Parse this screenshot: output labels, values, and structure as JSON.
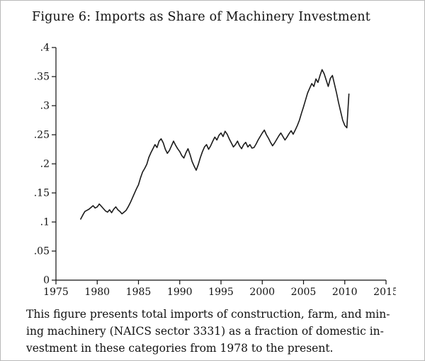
{
  "figure": {
    "title": "Figure 6: Imports as Share of Machinery Investment",
    "caption_lines": [
      "This figure presents total imports of construction, farm, and min-",
      "ing machinery (NAICS sector 3331) as a fraction of domestic in-",
      "vestment in these categories from 1978 to the present."
    ]
  },
  "chart_data": {
    "type": "line",
    "title": "Imports as Share of Machinery Investment",
    "xlabel": "",
    "ylabel": "",
    "xlim": [
      1975,
      2015
    ],
    "ylim": [
      0,
      0.4
    ],
    "x_ticks": [
      1975,
      1980,
      1985,
      1990,
      1995,
      2000,
      2005,
      2010,
      2015
    ],
    "y_ticks": [
      0,
      0.05,
      0.1,
      0.15,
      0.2,
      0.25,
      0.3,
      0.35,
      0.4
    ],
    "y_tick_labels": [
      "0",
      ".05",
      ".1",
      ".15",
      ".2",
      ".25",
      ".3",
      ".35",
      ".4"
    ],
    "grid": false,
    "legend": "none",
    "axis_color": "#111111",
    "line_color": "#1b1b1b",
    "x_start": 1978.0,
    "x_step": 0.25,
    "x_end": 2010.5,
    "frequency": "quarterly",
    "series": [
      {
        "name": "imports-share-of-machinery-investment",
        "values": [
          0.105,
          0.112,
          0.118,
          0.12,
          0.122,
          0.125,
          0.128,
          0.124,
          0.126,
          0.131,
          0.127,
          0.123,
          0.119,
          0.117,
          0.121,
          0.116,
          0.122,
          0.126,
          0.121,
          0.118,
          0.114,
          0.117,
          0.12,
          0.126,
          0.133,
          0.141,
          0.149,
          0.157,
          0.164,
          0.176,
          0.186,
          0.192,
          0.199,
          0.211,
          0.219,
          0.226,
          0.233,
          0.228,
          0.239,
          0.243,
          0.236,
          0.225,
          0.218,
          0.223,
          0.231,
          0.239,
          0.232,
          0.226,
          0.221,
          0.214,
          0.21,
          0.219,
          0.226,
          0.216,
          0.204,
          0.196,
          0.189,
          0.199,
          0.211,
          0.221,
          0.229,
          0.233,
          0.225,
          0.231,
          0.239,
          0.246,
          0.241,
          0.249,
          0.253,
          0.247,
          0.256,
          0.251,
          0.243,
          0.236,
          0.229,
          0.233,
          0.239,
          0.231,
          0.226,
          0.233,
          0.237,
          0.229,
          0.233,
          0.227,
          0.228,
          0.234,
          0.241,
          0.247,
          0.253,
          0.258,
          0.25,
          0.244,
          0.237,
          0.231,
          0.236,
          0.242,
          0.248,
          0.253,
          0.247,
          0.241,
          0.246,
          0.252,
          0.257,
          0.251,
          0.258,
          0.266,
          0.275,
          0.287,
          0.298,
          0.31,
          0.322,
          0.33,
          0.338,
          0.333,
          0.346,
          0.34,
          0.352,
          0.362,
          0.355,
          0.344,
          0.333,
          0.347,
          0.352,
          0.337,
          0.322,
          0.305,
          0.29,
          0.275,
          0.266,
          0.262,
          0.32
        ]
      }
    ]
  }
}
